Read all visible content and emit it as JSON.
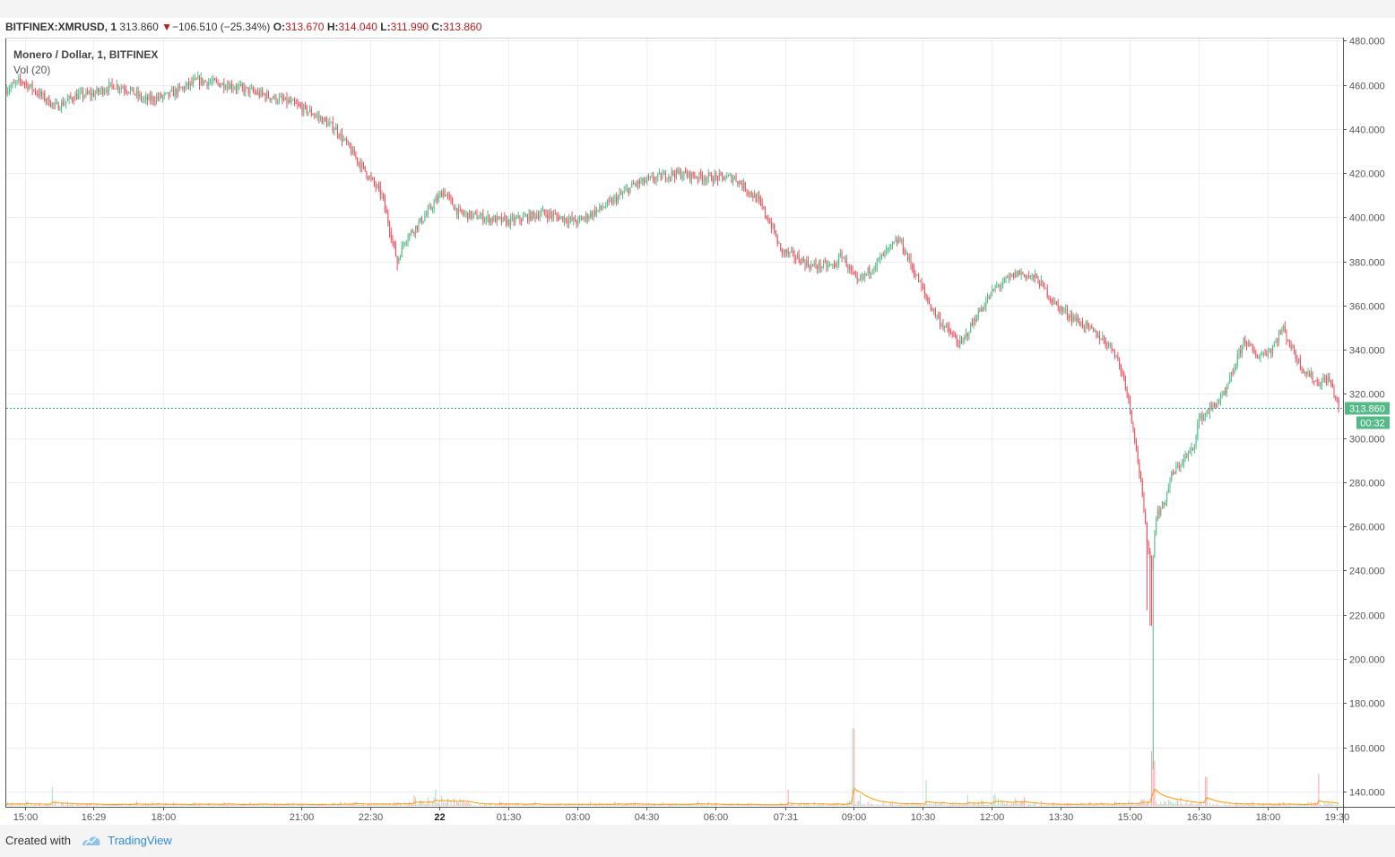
{
  "header": {
    "symbol": "BITFINEX:XMRUSD, 1",
    "last": "313.860",
    "change": "−106.510 (−25.34%)",
    "o_label": "O:",
    "o_val": "313.670",
    "h_label": "H:",
    "h_val": "314.040",
    "l_label": "L:",
    "l_val": "311.990",
    "c_label": "C:",
    "c_val": "313.860"
  },
  "legend": {
    "title": "Monero / Dollar, 1, BITFINEX",
    "volume": "Vol (20)"
  },
  "price_tag": {
    "price": "313.860",
    "countdown": "00:32"
  },
  "footer": {
    "created_with": "Created with",
    "brand": "TradingView"
  },
  "colors": {
    "up": "#53b987",
    "down": "#eb4d5c",
    "price_line": "#26a69a",
    "volume_ma": "#ff9800",
    "grid": "#e9eff3",
    "axis_text": "#555555"
  },
  "chart_data": {
    "type": "candlestick",
    "ylim": [
      133,
      481
    ],
    "y_ticks": [
      140,
      160,
      180,
      200,
      220,
      240,
      260,
      280,
      300,
      320,
      340,
      360,
      380,
      400,
      420,
      440,
      460,
      480
    ],
    "y_tick_labels": [
      "140.000",
      "160.000",
      "180.000",
      "200.000",
      "220.000",
      "240.000",
      "260.000",
      "280.000",
      "300.000",
      "320.000",
      "340.000",
      "360.000",
      "380.000",
      "400.000",
      "420.000",
      "440.000",
      "460.000",
      "480.000"
    ],
    "x_range": [
      "14:35",
      "19:34 (22)"
    ],
    "x_ticks": [
      {
        "label": "15:00",
        "t": 25
      },
      {
        "label": "16:29",
        "t": 114
      },
      {
        "label": "18:00",
        "t": 205
      },
      {
        "label": "21:00",
        "t": 385
      },
      {
        "label": "22:30",
        "t": 475
      },
      {
        "label": "22",
        "t": 565,
        "bold": true
      },
      {
        "label": "01:30",
        "t": 655
      },
      {
        "label": "03:00",
        "t": 745
      },
      {
        "label": "04:30",
        "t": 835
      },
      {
        "label": "06:00",
        "t": 925
      },
      {
        "label": "07:31",
        "t": 1016
      },
      {
        "label": "09:00",
        "t": 1105
      },
      {
        "label": "10:30",
        "t": 1195
      },
      {
        "label": "12:00",
        "t": 1285
      },
      {
        "label": "13:30",
        "t": 1375
      },
      {
        "label": "15:00",
        "t": 1465
      },
      {
        "label": "16:30",
        "t": 1555
      },
      {
        "label": "18:00",
        "t": 1645
      },
      {
        "label": "19:30",
        "t": 1735
      }
    ],
    "t_range": [
      0,
      1739
    ],
    "close_keypoints": [
      [
        0,
        458
      ],
      [
        20,
        462
      ],
      [
        35,
        458
      ],
      [
        65,
        450
      ],
      [
        90,
        455
      ],
      [
        114,
        456
      ],
      [
        140,
        460
      ],
      [
        160,
        458
      ],
      [
        180,
        453
      ],
      [
        210,
        455
      ],
      [
        250,
        462
      ],
      [
        290,
        460
      ],
      [
        340,
        455
      ],
      [
        370,
        452
      ],
      [
        400,
        447
      ],
      [
        430,
        440
      ],
      [
        460,
        425
      ],
      [
        490,
        410
      ],
      [
        510,
        380
      ],
      [
        520,
        390
      ],
      [
        545,
        400
      ],
      [
        570,
        412
      ],
      [
        590,
        402
      ],
      [
        620,
        400
      ],
      [
        655,
        398
      ],
      [
        700,
        402
      ],
      [
        745,
        398
      ],
      [
        790,
        407
      ],
      [
        820,
        415
      ],
      [
        870,
        420
      ],
      [
        915,
        418
      ],
      [
        950,
        418
      ],
      [
        980,
        408
      ],
      [
        1000,
        395
      ],
      [
        1010,
        385
      ],
      [
        1030,
        382
      ],
      [
        1050,
        378
      ],
      [
        1080,
        378
      ],
      [
        1090,
        383
      ],
      [
        1110,
        370
      ],
      [
        1150,
        385
      ],
      [
        1165,
        390
      ],
      [
        1185,
        375
      ],
      [
        1205,
        360
      ],
      [
        1220,
        352
      ],
      [
        1245,
        342
      ],
      [
        1265,
        355
      ],
      [
        1290,
        368
      ],
      [
        1320,
        375
      ],
      [
        1345,
        372
      ],
      [
        1370,
        360
      ],
      [
        1390,
        355
      ],
      [
        1410,
        350
      ],
      [
        1430,
        345
      ],
      [
        1445,
        340
      ],
      [
        1460,
        325
      ],
      [
        1470,
        305
      ],
      [
        1478,
        285
      ],
      [
        1486,
        260
      ],
      [
        1494,
        240
      ],
      [
        1500,
        265
      ],
      [
        1510,
        270
      ],
      [
        1520,
        283
      ],
      [
        1535,
        290
      ],
      [
        1548,
        295
      ],
      [
        1555,
        308
      ],
      [
        1570,
        313
      ],
      [
        1590,
        320
      ],
      [
        1605,
        335
      ],
      [
        1615,
        345
      ],
      [
        1630,
        337
      ],
      [
        1650,
        340
      ],
      [
        1665,
        350
      ],
      [
        1678,
        340
      ],
      [
        1690,
        332
      ],
      [
        1710,
        325
      ],
      [
        1725,
        327
      ],
      [
        1739,
        313.86
      ]
    ],
    "wick_extremes": [
      {
        "t": 510,
        "low": 376
      },
      {
        "t": 1488,
        "low": 222
      },
      {
        "t": 1493,
        "low": 215
      },
      {
        "t": 1496,
        "low": 150
      }
    ],
    "volume": {
      "label": "Vol (20)",
      "spikes": [
        {
          "t": 1105,
          "value": 96
        },
        {
          "t": 1495,
          "value": 68
        },
        {
          "t": 1497,
          "value": 56
        },
        {
          "t": 1712,
          "value": 40
        },
        {
          "t": 1565,
          "value": 36
        },
        {
          "t": 1200,
          "value": 32
        },
        {
          "t": 60,
          "value": 24
        },
        {
          "t": 560,
          "value": 20
        },
        {
          "t": 1020,
          "value": 20
        },
        {
          "t": 1290,
          "value": 15
        }
      ],
      "scale_max": 200
    },
    "last_price": 313.86
  }
}
